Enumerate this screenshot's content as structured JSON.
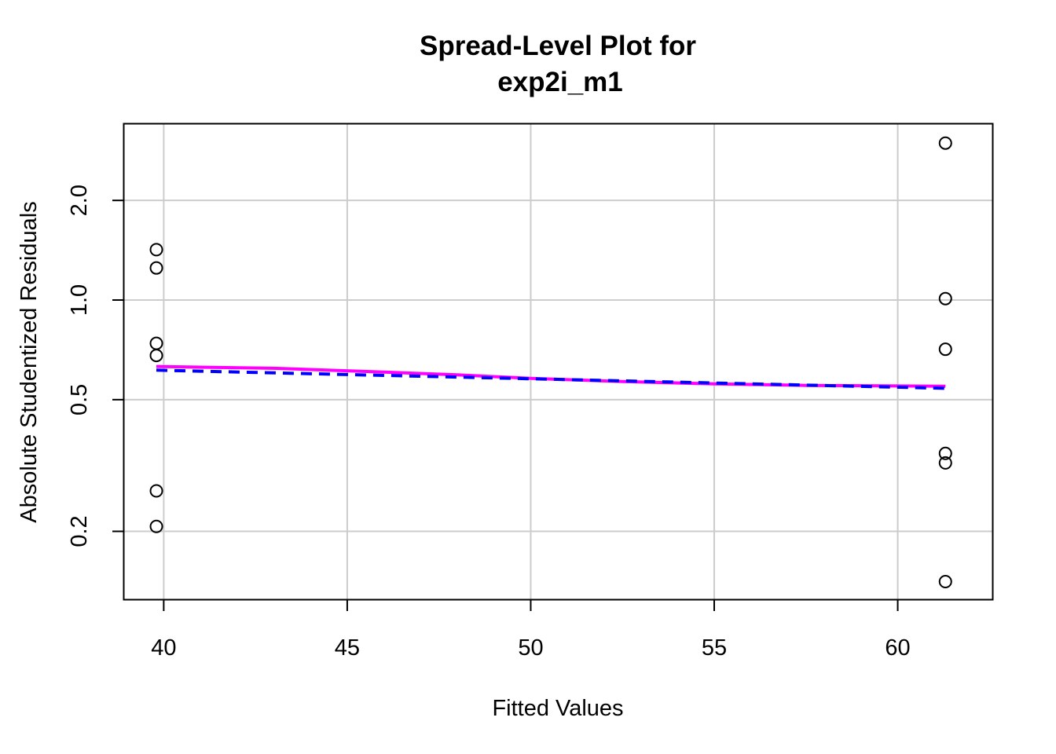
{
  "chart_data": {
    "type": "scatter",
    "title": [
      "Spread-Level Plot for",
      "exp2i_m1"
    ],
    "xlabel": "Fitted Values",
    "ylabel": "Absolute Studentized Residuals",
    "x_scale": "linear",
    "y_scale": "log",
    "xlim": [
      38.9,
      62.6
    ],
    "ylim": [
      0.124,
      3.42
    ],
    "x_ticks": [
      {
        "value": 40,
        "label": "40"
      },
      {
        "value": 45,
        "label": "45"
      },
      {
        "value": 50,
        "label": "50"
      },
      {
        "value": 55,
        "label": "55"
      },
      {
        "value": 60,
        "label": "60"
      }
    ],
    "y_ticks": [
      {
        "value": 0.2,
        "label": "0.2"
      },
      {
        "value": 0.5,
        "label": "0.5"
      },
      {
        "value": 1.0,
        "label": "1.0"
      },
      {
        "value": 2.0,
        "label": "2.0"
      }
    ],
    "grid": true,
    "points": [
      {
        "x": 39.8,
        "y": 1.42
      },
      {
        "x": 39.8,
        "y": 1.25
      },
      {
        "x": 39.8,
        "y": 0.74
      },
      {
        "x": 39.8,
        "y": 0.68
      },
      {
        "x": 39.8,
        "y": 0.265
      },
      {
        "x": 39.8,
        "y": 0.207
      },
      {
        "x": 61.3,
        "y": 2.98
      },
      {
        "x": 61.3,
        "y": 1.01
      },
      {
        "x": 61.3,
        "y": 0.71
      },
      {
        "x": 61.3,
        "y": 0.344
      },
      {
        "x": 61.3,
        "y": 0.322
      },
      {
        "x": 61.3,
        "y": 0.141
      }
    ],
    "lines": [
      {
        "style": "solid",
        "color": "#ff00ff",
        "x": [
          39.8,
          43.0,
          46.0,
          48.0,
          50.0,
          52.5,
          55.0,
          57.5,
          61.3
        ],
        "y": [
          0.63,
          0.622,
          0.606,
          0.594,
          0.58,
          0.567,
          0.558,
          0.552,
          0.549
        ]
      },
      {
        "style": "dashed",
        "color": "#0000ff",
        "x": [
          39.8,
          61.3
        ],
        "y": [
          0.614,
          0.541
        ]
      }
    ]
  }
}
